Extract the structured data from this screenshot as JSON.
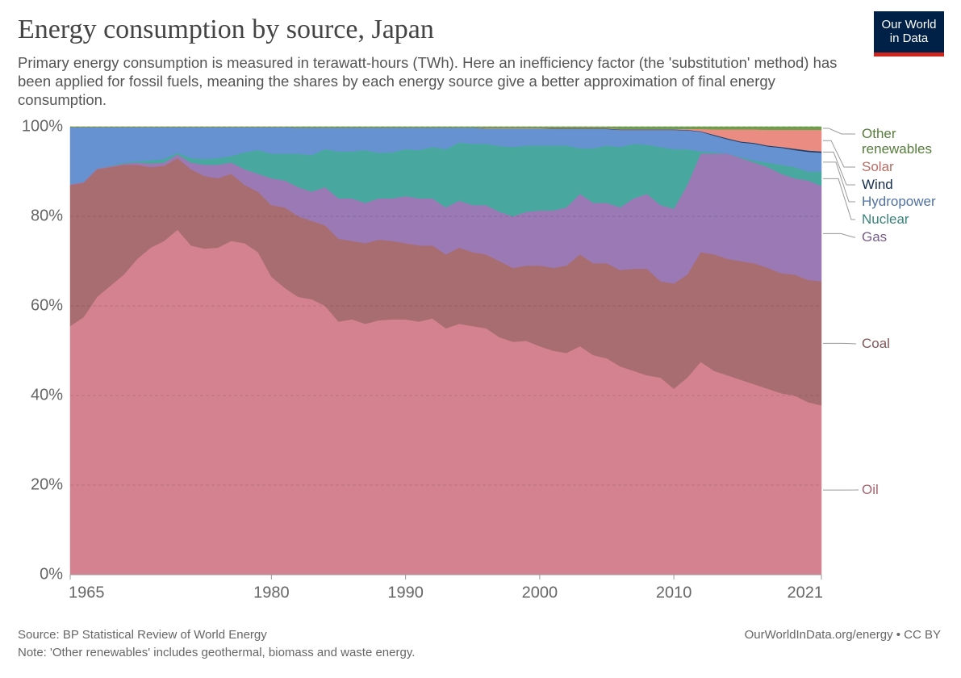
{
  "header": {
    "title": "Energy consumption by source, Japan",
    "subtitle": "Primary energy consumption is measured in terawatt-hours (TWh). Here an inefficiency factor (the 'substitution' method) has been applied for fossil fuels, meaning the shares by each energy source give a better approximation of final energy consumption.",
    "logo": "Our World in Data"
  },
  "chart_data": {
    "type": "stacked-area",
    "x": [
      1965,
      1966,
      1967,
      1968,
      1969,
      1970,
      1971,
      1972,
      1973,
      1974,
      1975,
      1976,
      1977,
      1978,
      1979,
      1980,
      1981,
      1982,
      1983,
      1984,
      1985,
      1986,
      1987,
      1988,
      1989,
      1990,
      1991,
      1992,
      1993,
      1994,
      1995,
      1996,
      1997,
      1998,
      1999,
      2000,
      2001,
      2002,
      2003,
      2004,
      2005,
      2006,
      2007,
      2008,
      2009,
      2010,
      2011,
      2012,
      2013,
      2014,
      2015,
      2016,
      2017,
      2018,
      2019,
      2020,
      2021
    ],
    "xlim": [
      1965,
      2021
    ],
    "xticks": [
      1965,
      1980,
      1990,
      2000,
      2010,
      2021
    ],
    "ylim": [
      0,
      100
    ],
    "yticks": [
      {
        "value": 0,
        "label": "0%"
      },
      {
        "value": 20,
        "label": "20%"
      },
      {
        "value": 40,
        "label": "40%"
      },
      {
        "value": 60,
        "label": "60%"
      },
      {
        "value": 80,
        "label": "80%"
      },
      {
        "value": 100,
        "label": "100%"
      }
    ],
    "grid": true,
    "series": [
      {
        "name": "Oil",
        "color": "#d4828f",
        "values": [
          55.5,
          57.5,
          62,
          64.5,
          67,
          70.5,
          73,
          74.5,
          77,
          73.5,
          72.8,
          73,
          74.5,
          74,
          72,
          66.5,
          64,
          62,
          61.5,
          60,
          56.5,
          57,
          56,
          56.8,
          57,
          57,
          56.5,
          57.2,
          55,
          56,
          55.5,
          55,
          53,
          52,
          52.2,
          51,
          50,
          49.5,
          51,
          49,
          48.3,
          46.5,
          45.5,
          44.5,
          44,
          41.5,
          44,
          47.5,
          45.5,
          44.5,
          43.5,
          42.5,
          41.5,
          40.5,
          40,
          38.5,
          37.8
        ]
      },
      {
        "name": "Coal",
        "color": "#a86d70",
        "values": [
          31.5,
          30,
          28.5,
          26.5,
          24.5,
          21,
          18,
          16.8,
          16,
          17,
          16.2,
          15.5,
          15,
          13,
          13.5,
          16,
          18,
          18,
          17.5,
          18,
          18.5,
          17.5,
          18,
          18,
          17.5,
          17,
          17,
          16.3,
          16.5,
          17,
          16.5,
          16.5,
          17,
          16.5,
          16.8,
          18,
          18.5,
          19.5,
          20.5,
          20.5,
          21.2,
          21.5,
          22.8,
          23.8,
          21.5,
          23.5,
          23,
          24.5,
          26,
          26,
          26.5,
          27,
          27,
          26.8,
          27,
          27.3,
          27.7
        ]
      },
      {
        "name": "Gas",
        "color": "#9a79b4",
        "values": [
          0.2,
          0.2,
          0.2,
          0.2,
          0.3,
          0.5,
          0.8,
          0.7,
          0.8,
          1.5,
          2.5,
          3,
          2.5,
          3.5,
          4,
          6,
          6,
          6.5,
          6.5,
          8.5,
          9,
          9.5,
          9,
          9.2,
          9.5,
          10.5,
          10.5,
          10.5,
          10.5,
          10.5,
          10.5,
          11,
          11,
          11.5,
          12,
          12.3,
          12.8,
          13,
          13.5,
          13.5,
          13.5,
          14,
          15.7,
          16.7,
          17,
          16.7,
          20,
          22,
          22.5,
          23.5,
          23,
          22.5,
          22.5,
          22.2,
          21.5,
          22.2,
          21.3
        ]
      },
      {
        "name": "Nuclear",
        "color": "#48a89f",
        "values": [
          0,
          0,
          0,
          0.1,
          0.2,
          0.3,
          0.7,
          0.8,
          0.4,
          1,
          1.3,
          1.5,
          1.5,
          3.8,
          5.3,
          5.5,
          6,
          7.5,
          8.2,
          8.5,
          10.5,
          10.5,
          11.8,
          10.2,
          10.3,
          10.5,
          10.8,
          11.5,
          13,
          13,
          13.7,
          13.7,
          14.7,
          15.5,
          14.8,
          14.5,
          14.5,
          13.8,
          10.2,
          12.2,
          12.8,
          13.5,
          12.2,
          11,
          13,
          13.3,
          8,
          0.5,
          0.3,
          0,
          0.2,
          0.5,
          1,
          2,
          2.5,
          2,
          3.2
        ]
      },
      {
        "name": "Hydropower",
        "color": "#6792d1",
        "values": [
          12.7,
          12.2,
          9.2,
          8.6,
          7.9,
          7.6,
          7.4,
          7.1,
          5.7,
          6.9,
          7.1,
          6.9,
          6.4,
          5.6,
          5.1,
          5.9,
          5.9,
          5.8,
          6.1,
          4.8,
          5.3,
          5.3,
          5,
          5.6,
          5.5,
          4.8,
          5,
          4.3,
          4.8,
          3.3,
          3.6,
          3.4,
          3.9,
          4.1,
          3.8,
          3.8,
          3.7,
          3.7,
          4.3,
          4.3,
          3.7,
          3.8,
          3.1,
          3.3,
          3.8,
          4.3,
          4.2,
          4.4,
          3.7,
          3.2,
          3.3,
          3.7,
          3.6,
          3.8,
          3.8,
          4.4,
          4.2
        ]
      },
      {
        "name": "Wind",
        "color": "#1f3e66",
        "values": [
          0,
          0,
          0,
          0,
          0,
          0,
          0,
          0,
          0,
          0,
          0,
          0,
          0,
          0,
          0,
          0,
          0,
          0,
          0,
          0,
          0,
          0,
          0,
          0,
          0,
          0,
          0,
          0,
          0,
          0,
          0,
          0,
          0,
          0,
          0,
          0,
          0.1,
          0.1,
          0.1,
          0.1,
          0.1,
          0.1,
          0.1,
          0.1,
          0.1,
          0.1,
          0.1,
          0.1,
          0.2,
          0.2,
          0.2,
          0.2,
          0.2,
          0.2,
          0.3,
          0.3,
          0.3
        ]
      },
      {
        "name": "Solar",
        "color": "#ea8c81",
        "values": [
          0,
          0,
          0,
          0,
          0,
          0,
          0,
          0,
          0,
          0,
          0,
          0,
          0,
          0,
          0,
          0,
          0,
          0,
          0,
          0,
          0,
          0,
          0,
          0,
          0,
          0,
          0,
          0,
          0,
          0,
          0,
          0.1,
          0.1,
          0.1,
          0.1,
          0.1,
          0.1,
          0.1,
          0.1,
          0.1,
          0.1,
          0.1,
          0.1,
          0.1,
          0.1,
          0.1,
          0.2,
          0.5,
          1.2,
          2,
          2.7,
          3,
          3.5,
          3.8,
          4.2,
          4.6,
          4.8
        ]
      },
      {
        "name": "Other renewables",
        "color": "#6f9f4d",
        "values": [
          0.1,
          0.1,
          0.1,
          0.1,
          0.1,
          0.1,
          0.1,
          0.1,
          0.1,
          0.1,
          0.1,
          0.1,
          0.1,
          0.1,
          0.1,
          0.1,
          0.1,
          0.2,
          0.2,
          0.2,
          0.2,
          0.2,
          0.2,
          0.2,
          0.2,
          0.2,
          0.2,
          0.2,
          0.2,
          0.2,
          0.2,
          0.3,
          0.3,
          0.3,
          0.3,
          0.3,
          0.3,
          0.3,
          0.3,
          0.3,
          0.3,
          0.5,
          0.5,
          0.5,
          0.5,
          0.5,
          0.5,
          0.5,
          0.6,
          0.6,
          0.6,
          0.6,
          0.7,
          0.7,
          0.7,
          0.7,
          0.7
        ]
      }
    ]
  },
  "footer": {
    "source": "Source: BP Statistical Review of World Energy",
    "note": "Note: 'Other renewables' includes geothermal, biomass and waste energy.",
    "url": "OurWorldInData.org/energy • CC BY"
  }
}
